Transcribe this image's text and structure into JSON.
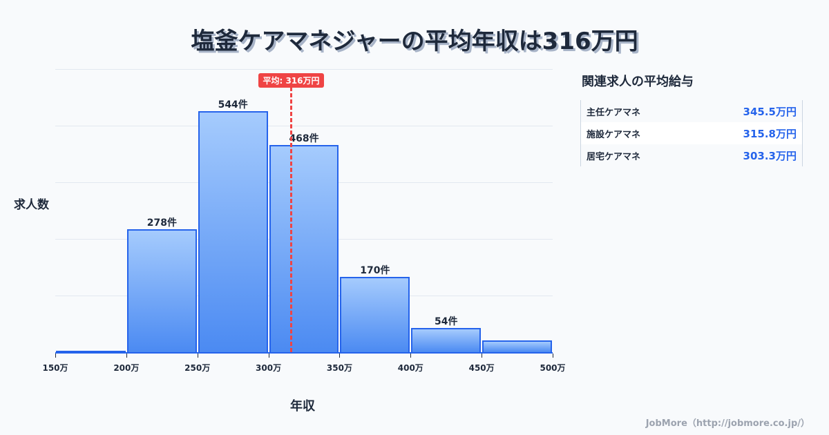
{
  "title": "塩釜ケアマネジャーの平均年収は316万円",
  "chart_data": {
    "type": "bar",
    "title": "塩釜ケアマネジャーの平均年収は316万円",
    "xlabel": "年収",
    "ylabel": "求人数",
    "categories": [
      "150-200万",
      "200-250万",
      "250-300万",
      "300-350万",
      "350-400万",
      "400-450万",
      "450-500万"
    ],
    "values": [
      3,
      278,
      544,
      468,
      170,
      54,
      26
    ],
    "value_labels": [
      "",
      "278件",
      "544件",
      "468件",
      "170件",
      "54件",
      ""
    ],
    "x_ticks": [
      "150万",
      "200万",
      "250万",
      "300万",
      "350万",
      "400万",
      "450万",
      "500万"
    ],
    "ylim": [
      0,
      640
    ],
    "grid": true,
    "average": {
      "value": 316,
      "label": "平均: 316万円",
      "color": "#ef4444"
    },
    "bar_color": "#2563eb"
  },
  "sidebar": {
    "title": "関連求人の平均給与",
    "rows": [
      {
        "name": "主任ケアマネ",
        "value": "345.5万円"
      },
      {
        "name": "施設ケアマネ",
        "value": "315.8万円"
      },
      {
        "name": "居宅ケアマネ",
        "value": "303.3万円"
      }
    ]
  },
  "footer": "JobMore（http://jobmore.co.jp/）"
}
